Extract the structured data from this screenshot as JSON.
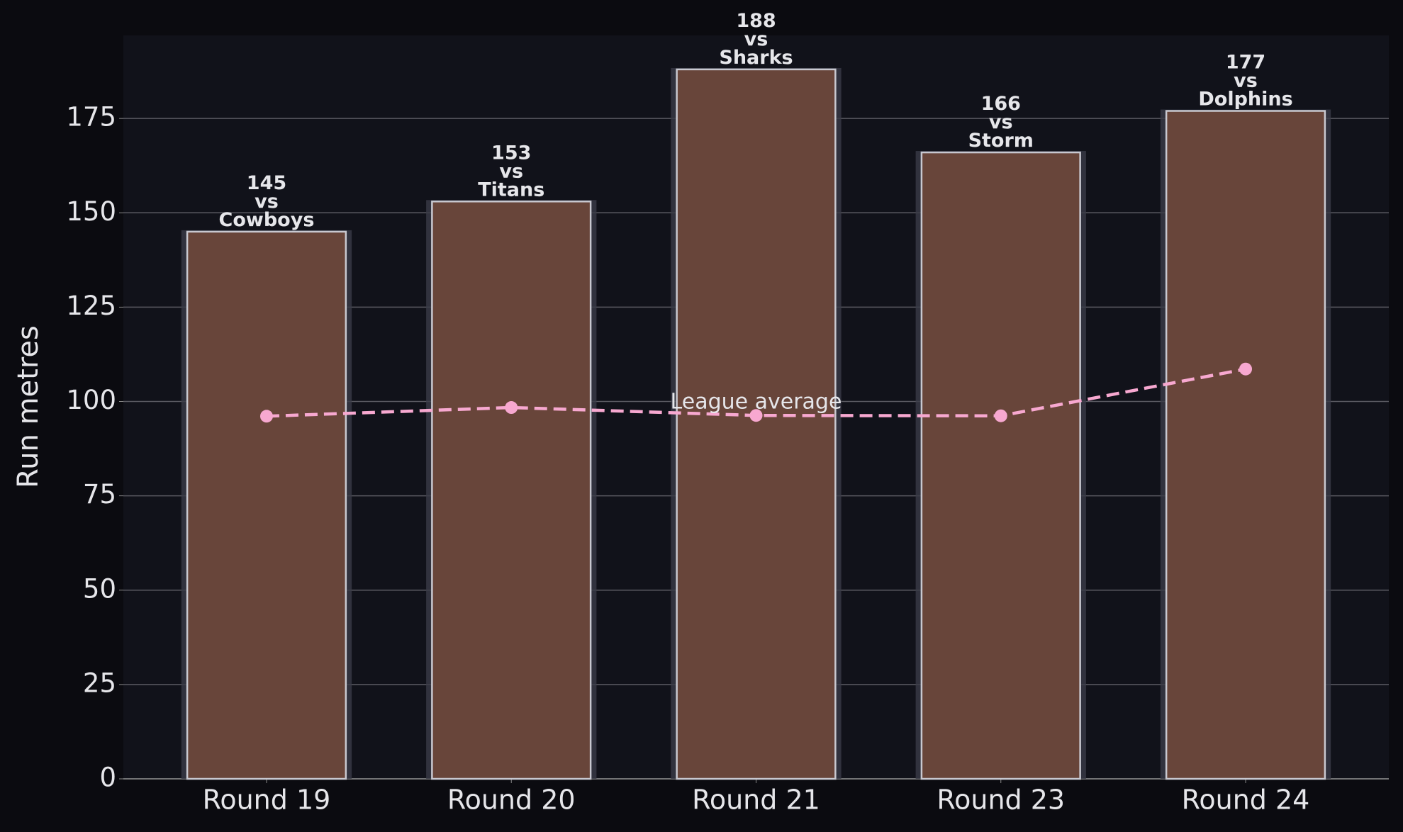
{
  "chart_data": {
    "type": "bar",
    "y_label": "Run metres",
    "categories": [
      "Round 19",
      "Round 20",
      "Round 21",
      "Round 23",
      "Round 24"
    ],
    "values": [
      145,
      153,
      188,
      166,
      177
    ],
    "value_labels": [
      "145\nvs\nCowboys",
      "153\nvs\nTitans",
      "188\nvs\nSharks",
      "166\nvs\nStorm",
      "177\nvs\nDolphins"
    ],
    "color": "#68453a",
    "edge_color": "#c8c8d0",
    "line": {
      "name": "League average",
      "color": "#f7a8d0",
      "values": [
        96.1,
        98.4,
        96.3,
        96.2,
        108.6
      ]
    },
    "ylim": [
      0,
      197
    ],
    "yticks": [
      0,
      25,
      50,
      75,
      100,
      125,
      150,
      175
    ],
    "grid": true
  }
}
